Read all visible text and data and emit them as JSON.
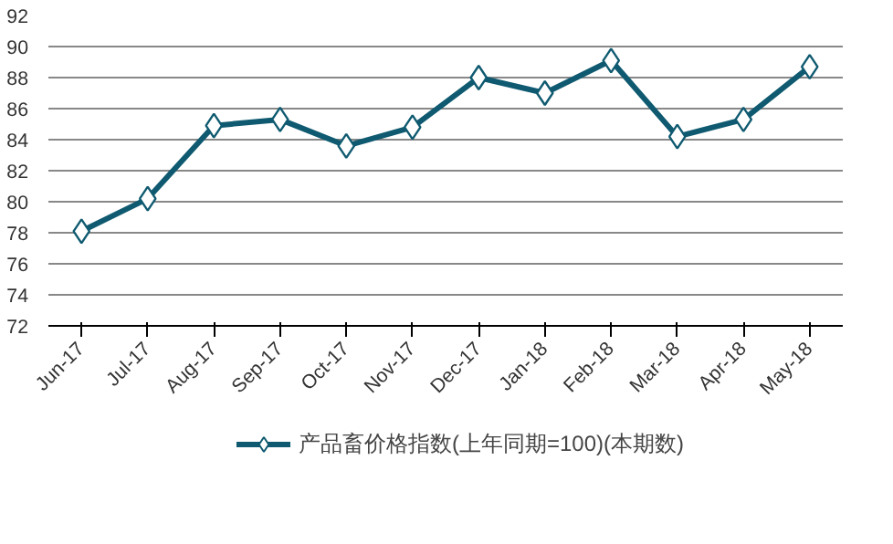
{
  "chart_data": {
    "type": "line",
    "categories": [
      "Jun-17",
      "Jul-17",
      "Aug-17",
      "Sep-17",
      "Oct-17",
      "Nov-17",
      "Dec-17",
      "Jan-18",
      "Feb-18",
      "Mar-18",
      "Apr-18",
      "May-18"
    ],
    "series": [
      {
        "name": "产品畜价格指数(上年同期=100)(本期数)",
        "color": "#0f5a70",
        "values": [
          78.1,
          80.2,
          84.9,
          85.3,
          83.6,
          84.8,
          88.0,
          87.0,
          89.1,
          84.2,
          85.3,
          88.7
        ]
      }
    ],
    "ylim": [
      72,
      92
    ],
    "yticks": [
      72,
      74,
      76,
      78,
      80,
      82,
      84,
      86,
      88,
      90,
      92
    ],
    "grid": "y",
    "legend": "bottom",
    "marker": "diamond",
    "line_style": "solid"
  }
}
